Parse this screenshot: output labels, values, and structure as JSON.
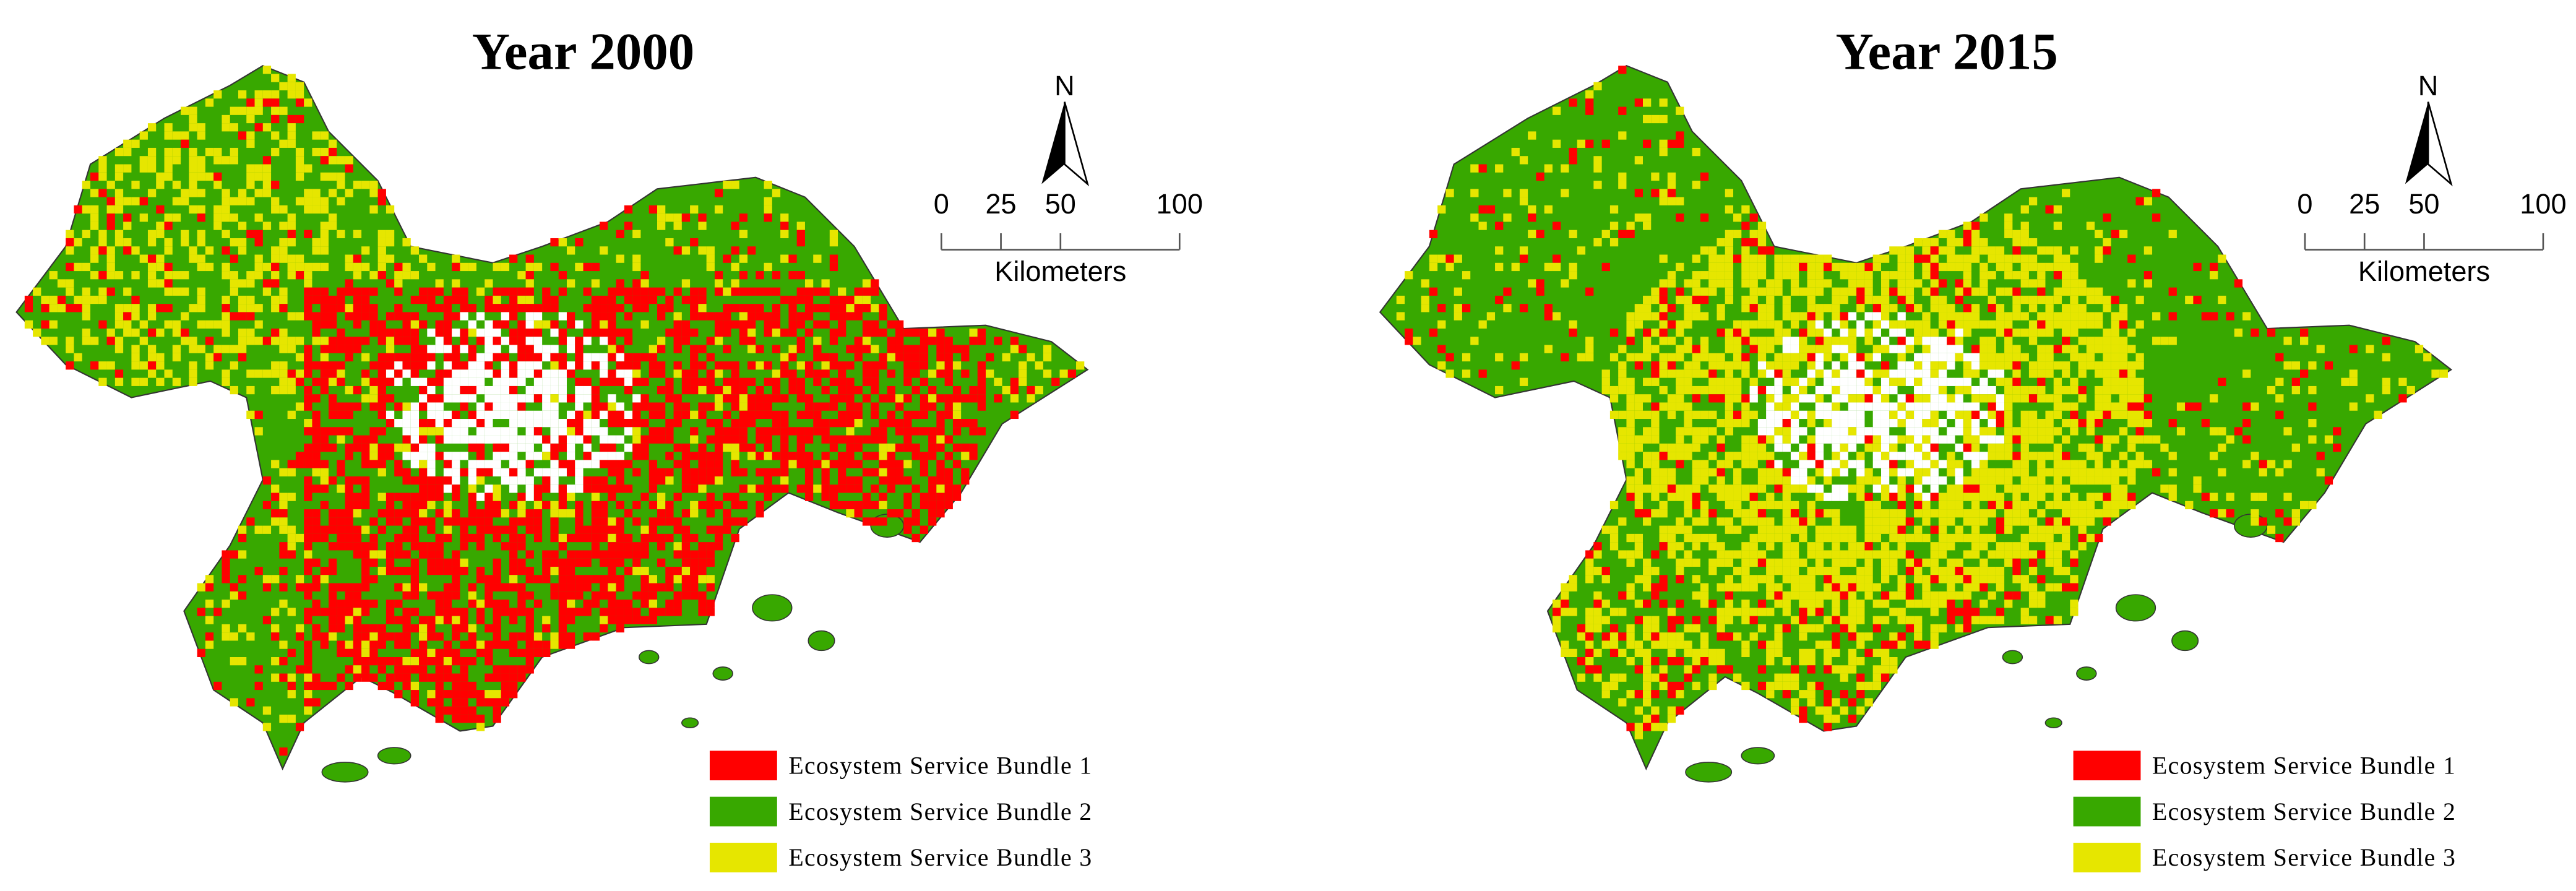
{
  "panels": [
    {
      "title": "Year 2000",
      "north": "N",
      "scale_bar": {
        "ticks": [
          0,
          25,
          50,
          100
        ],
        "unit": "Kilometers"
      },
      "legend": [
        {
          "label": "Ecosystem Service Bundle 1",
          "color": "#ff0000"
        },
        {
          "label": "Ecosystem Service Bundle 2",
          "color": "#38a800"
        },
        {
          "label": "Ecosystem Service Bundle 3",
          "color": "#e6e600"
        }
      ]
    },
    {
      "title": "Year 2015",
      "north": "N",
      "scale_bar": {
        "ticks": [
          0,
          25,
          50,
          100
        ],
        "unit": "Kilometers"
      },
      "legend": [
        {
          "label": "Ecosystem Service Bundle 1",
          "color": "#ff0000"
        },
        {
          "label": "Ecosystem Service Bundle 2",
          "color": "#38a800"
        },
        {
          "label": "Ecosystem Service Bundle 3",
          "color": "#e6e600"
        }
      ]
    }
  ]
}
